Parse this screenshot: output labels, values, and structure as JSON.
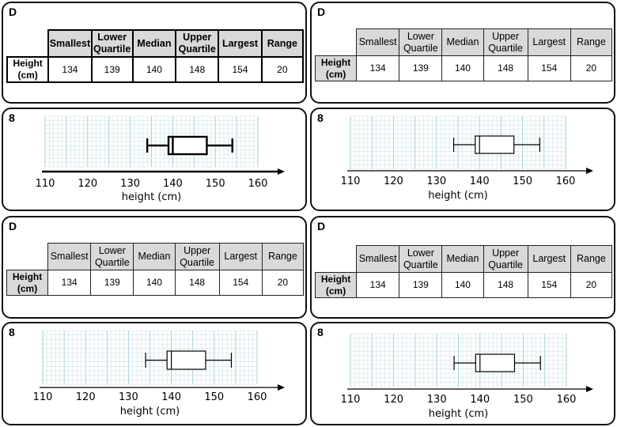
{
  "cards": [
    {
      "label": "D"
    },
    {
      "label": "D"
    },
    {
      "label": "D"
    },
    {
      "label": "D"
    }
  ],
  "plot_cards": [
    {
      "label": "8"
    },
    {
      "label": "8"
    },
    {
      "label": "8"
    },
    {
      "label": "8"
    }
  ],
  "table": {
    "headers": [
      "Smallest",
      "Lower Quartile",
      "Median",
      "Upper Quartile",
      "Largest",
      "Range"
    ],
    "row_header": "Height (cm)",
    "values": [
      "134",
      "139",
      "140",
      "148",
      "154",
      "20"
    ]
  },
  "chart_data": {
    "type": "boxplot",
    "xlabel": "height (cm)",
    "ticks": [
      110,
      120,
      130,
      140,
      150,
      160
    ],
    "xlim": [
      110,
      160
    ],
    "min": 134,
    "q1": 139,
    "median": 140,
    "q3": 148,
    "max": 154
  },
  "colors": {
    "grid_minor": "#cfe3e8",
    "grid_major": "#9fc8d2",
    "card_border": "#111111",
    "header_fill": "#d9d9d9"
  }
}
